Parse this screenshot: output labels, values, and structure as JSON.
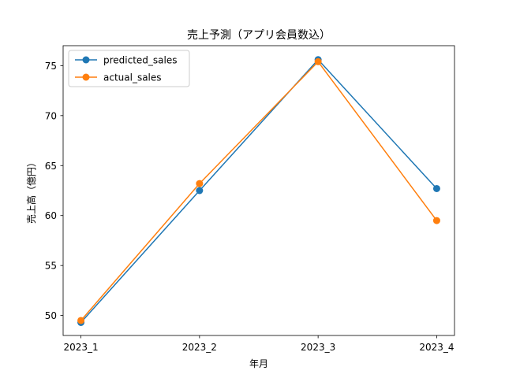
{
  "chart_data": {
    "type": "line",
    "title": "売上予測（アプリ会員数込）",
    "xlabel": "年月",
    "ylabel": "売上高（億円）",
    "categories": [
      "2023_1",
      "2023_2",
      "2023_3",
      "2023_4"
    ],
    "ylim": [
      48.0,
      77.0
    ],
    "yticks": [
      50,
      55,
      60,
      65,
      70,
      75
    ],
    "grid": false,
    "legend_position": "top-left",
    "series": [
      {
        "name": "predicted_sales",
        "color": "#1f77b4",
        "marker": "circle",
        "values": [
          49.3,
          62.5,
          75.6,
          62.7
        ]
      },
      {
        "name": "actual_sales",
        "color": "#ff7f0e",
        "marker": "circle",
        "values": [
          49.5,
          63.2,
          75.4,
          59.5
        ]
      }
    ]
  }
}
